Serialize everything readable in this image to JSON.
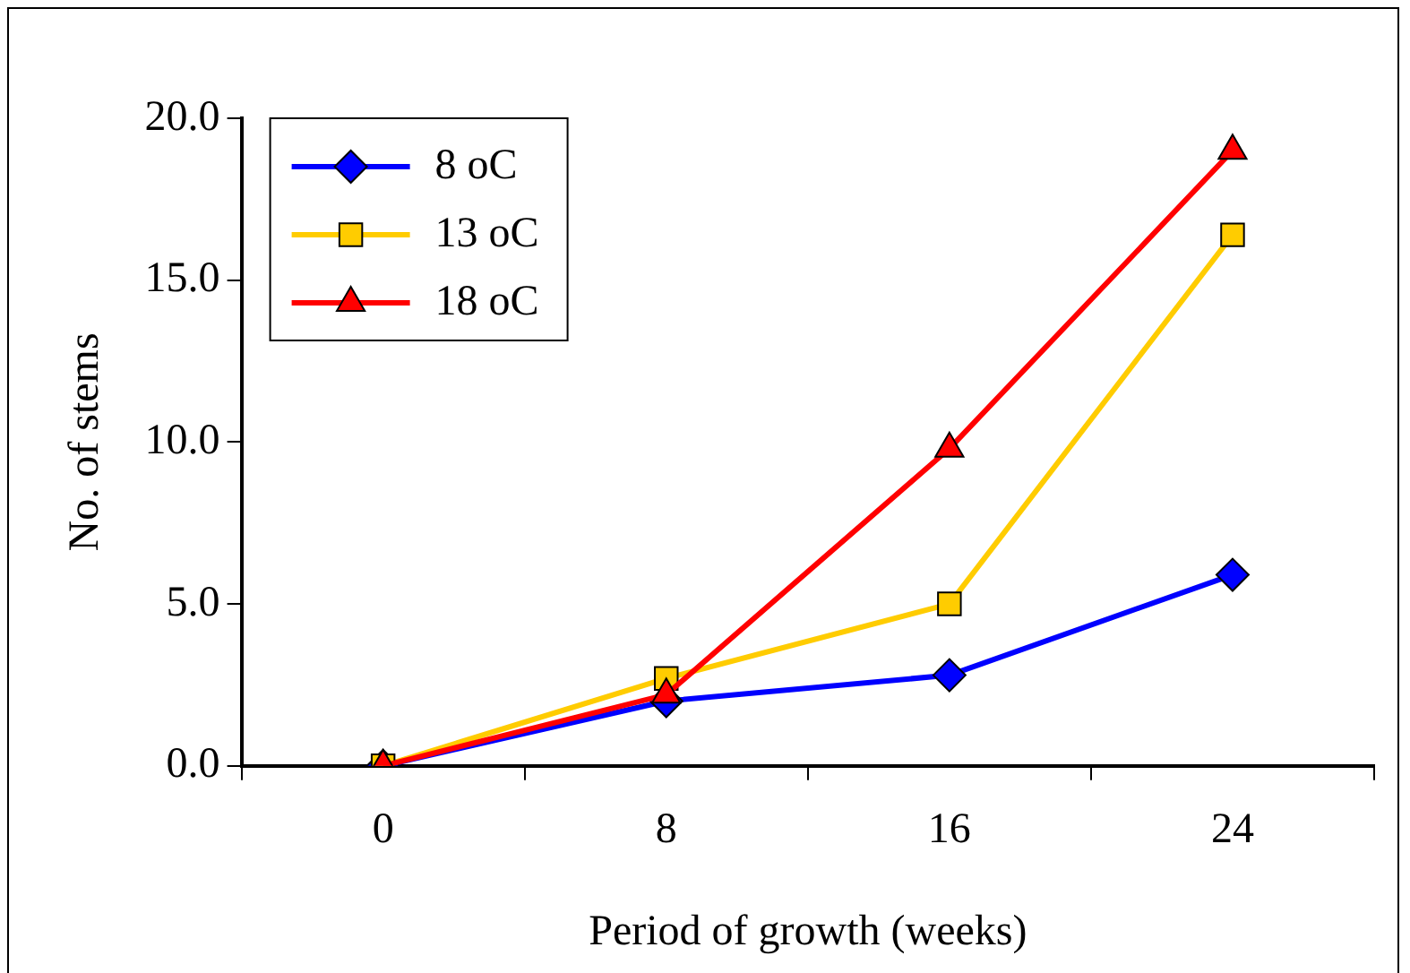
{
  "chart_data": {
    "type": "line",
    "xlabel": "Period of growth (weeks)",
    "ylabel": "No. of stems",
    "categories": [
      "0",
      "8",
      "16",
      "24"
    ],
    "series": [
      {
        "name": "8 oC",
        "color": "#0000ff",
        "marker": "diamond",
        "values": [
          0,
          2.0,
          2.8,
          5.9
        ]
      },
      {
        "name": "13 oC",
        "color": "#ffcc00",
        "marker": "square",
        "values": [
          0,
          2.7,
          5.0,
          16.4
        ]
      },
      {
        "name": "18 oC",
        "color": "#ff0000",
        "marker": "triangle",
        "values": [
          0,
          2.2,
          9.8,
          19.0
        ]
      }
    ],
    "ylim": [
      0,
      20
    ],
    "yticks": [
      {
        "value": 0,
        "label": "0.0"
      },
      {
        "value": 5,
        "label": "5.0"
      },
      {
        "value": 10,
        "label": "10.0"
      },
      {
        "value": 15,
        "label": "15.0"
      },
      {
        "value": 20,
        "label": "20.0"
      }
    ],
    "grid": false,
    "legend": "top left",
    "line_style": "solid"
  }
}
